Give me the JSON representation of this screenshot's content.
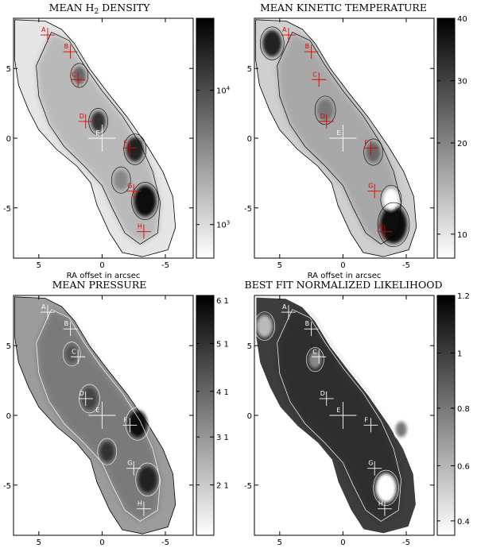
{
  "figure": {
    "panels": [
      {
        "id": "h2",
        "title_main": "MEAN H",
        "title_sub": "2",
        "title_rest": " DENSITY",
        "xlabel": "RA offset in arcsec",
        "x_ticks": [
          "5",
          "0",
          "-5"
        ],
        "y_ticks": [
          "5",
          "0",
          "-5"
        ],
        "colorbar_ticks": [
          {
            "base": "10",
            "exp": "4",
            "frac": 0.3
          },
          {
            "base": "10",
            "exp": "3",
            "frac": 0.86
          }
        ],
        "marker_color": "#e00000",
        "markers": [
          "A",
          "B",
          "C",
          "D",
          "E",
          "F",
          "G",
          "H"
        ]
      },
      {
        "id": "tkin",
        "title_main": "MEAN KINETIC TEMPERATURE",
        "title_sub": "",
        "title_rest": "",
        "xlabel": "RA offset in arcsec",
        "x_ticks": [
          "5",
          "0",
          "-5"
        ],
        "y_ticks": [
          "5",
          "0",
          "-5"
        ],
        "colorbar_ticks": [
          {
            "base": "40",
            "exp": "",
            "frac": 0.0
          },
          {
            "base": "30",
            "exp": "",
            "frac": 0.26
          },
          {
            "base": "20",
            "exp": "",
            "frac": 0.52
          },
          {
            "base": "10",
            "exp": "",
            "frac": 0.9
          }
        ],
        "marker_color": "#e00000",
        "markers": [
          "A",
          "B",
          "C",
          "D",
          "E",
          "F",
          "G",
          "H"
        ]
      },
      {
        "id": "press",
        "title_main": "MEAN PRESSURE",
        "title_sub": "",
        "title_rest": "",
        "xlabel": "RA offset in arcsec",
        "x_ticks": [
          "5",
          "0",
          "-5"
        ],
        "y_ticks": [
          "5",
          "0",
          "-5"
        ],
        "colorbar_ticks": [
          {
            "base": "6 1",
            "exp": "",
            "frac": 0.02
          },
          {
            "base": "5 1",
            "exp": "",
            "frac": 0.2
          },
          {
            "base": "4 1",
            "exp": "",
            "frac": 0.4
          },
          {
            "base": "3 1",
            "exp": "",
            "frac": 0.59
          },
          {
            "base": "2 1",
            "exp": "",
            "frac": 0.79
          }
        ],
        "marker_color": "#ffffff",
        "markers": [
          "A",
          "B",
          "C",
          "D",
          "E",
          "F",
          "G",
          "H"
        ]
      },
      {
        "id": "like",
        "title_main": "BEST FIT NORMALIZED LIKELIHOOD",
        "title_sub": "",
        "title_rest": "",
        "xlabel": "RA offset in arcsec",
        "x_ticks": [
          "5",
          "0",
          "-5"
        ],
        "y_ticks": [
          "5",
          "0",
          "-5"
        ],
        "colorbar_ticks": [
          {
            "base": "1.2",
            "exp": "",
            "frac": 0.0
          },
          {
            "base": "1",
            "exp": "",
            "frac": 0.24
          },
          {
            "base": "0.8",
            "exp": "",
            "frac": 0.47
          },
          {
            "base": "0.6",
            "exp": "",
            "frac": 0.71
          },
          {
            "base": "0.4",
            "exp": "",
            "frac": 0.94
          }
        ],
        "marker_color": "#ffffff",
        "markers": [
          "A",
          "B",
          "C",
          "D",
          "E",
          "F",
          "G",
          "H"
        ]
      }
    ]
  }
}
